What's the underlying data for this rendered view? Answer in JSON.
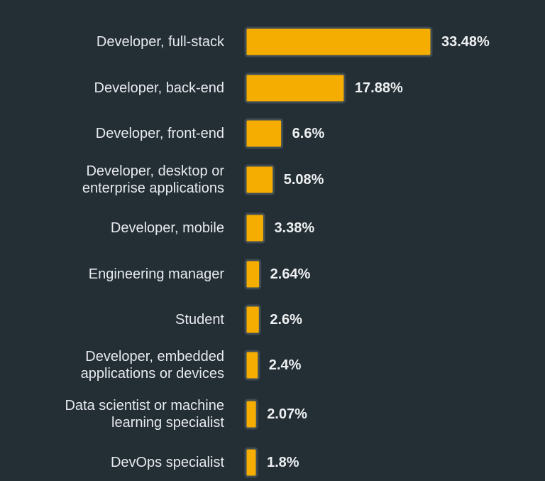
{
  "chart_data": {
    "type": "bar",
    "orientation": "horizontal",
    "categories": [
      [
        "Developer, full-stack"
      ],
      [
        "Developer, back-end"
      ],
      [
        "Developer, front-end"
      ],
      [
        "Developer, desktop or",
        "enterprise applications"
      ],
      [
        "Developer, mobile"
      ],
      [
        "Engineering manager"
      ],
      [
        "Student"
      ],
      [
        "Developer, embedded",
        "applications or devices"
      ],
      [
        "Data scientist or machine",
        "learning specialist"
      ],
      [
        "DevOps specialist"
      ]
    ],
    "values": [
      33.48,
      17.88,
      6.6,
      5.08,
      3.38,
      2.64,
      2.6,
      2.4,
      2.07,
      1.8
    ],
    "value_labels": [
      "33.48%",
      "17.88%",
      "6.6%",
      "5.08%",
      "3.38%",
      "2.64%",
      "2.6%",
      "2.4%",
      "2.07%",
      "1.8%"
    ],
    "unit": "%",
    "xlim": [
      0,
      33.48
    ],
    "colors": {
      "bar": "#f4ad00",
      "bar_border": "#3f4b53",
      "background": "#232e35",
      "text": "#e8ebee"
    }
  }
}
